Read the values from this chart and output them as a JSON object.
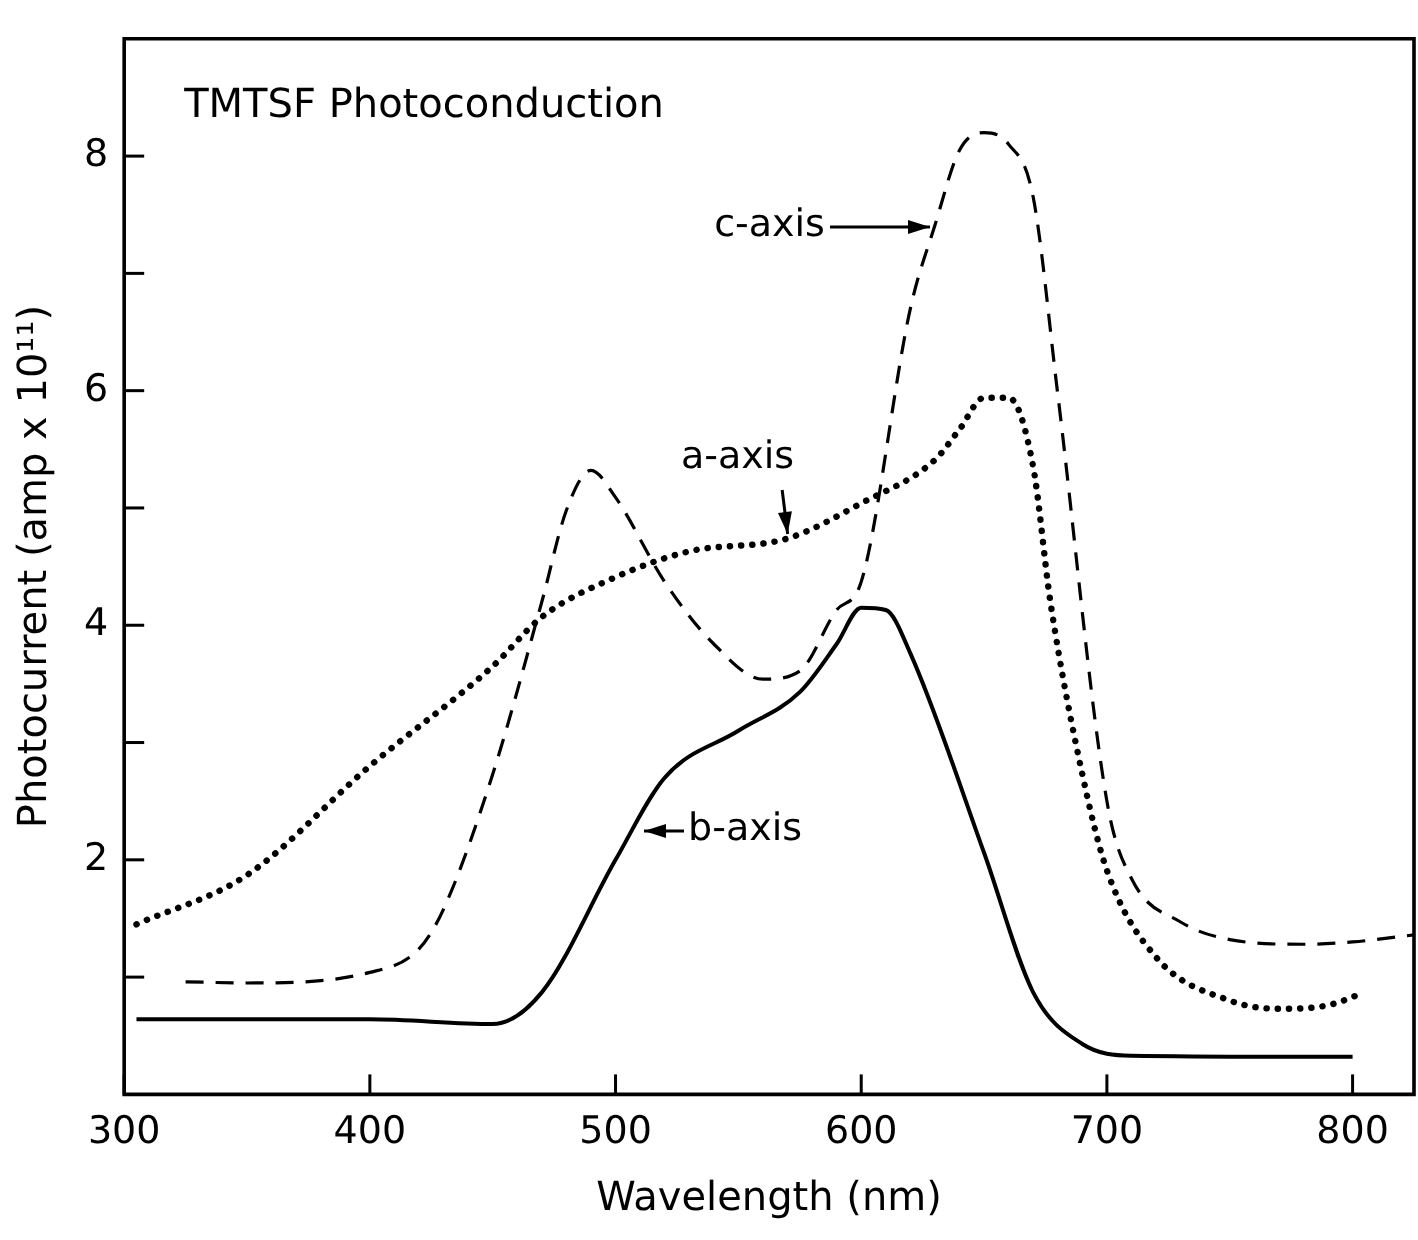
{
  "chart_data": {
    "type": "line",
    "title": "TMTSF Photoconduction",
    "xlabel": "Wavelength (nm)",
    "ylabel": "Photocurrent (amp x 10¹¹)",
    "xlim": [
      300,
      825
    ],
    "xticks": [
      300,
      400,
      500,
      600,
      700,
      800
    ],
    "ylim": [
      0,
      9
    ],
    "yticks": [
      {
        "value": 1,
        "label": null
      },
      2,
      {
        "value": 3,
        "label": null
      },
      4,
      {
        "value": 5,
        "label": null
      },
      6,
      {
        "value": 7,
        "label": null
      },
      8
    ],
    "grid": false,
    "legend": false,
    "marker": "none",
    "series": [
      {
        "color": "#000000",
        "line_style": "dashed",
        "x": [
          325,
          350,
          400,
          420,
          430,
          450,
          470,
          480,
          490,
          500,
          520,
          540,
          560,
          575,
          590,
          600,
          620,
          630,
          640,
          650,
          660,
          670,
          680,
          700,
          710,
          730,
          750,
          780,
          800,
          825
        ],
        "values": [
          0.96,
          0.95,
          1.04,
          1.24,
          1.58,
          2.73,
          4.2,
          4.98,
          5.32,
          5.09,
          4.37,
          3.84,
          3.54,
          3.61,
          4.13,
          4.37,
          6.7,
          7.41,
          8.05,
          8.2,
          8.1,
          7.65,
          5.97,
          2.5,
          1.84,
          1.47,
          1.32,
          1.28,
          1.3,
          1.36
        ]
      },
      {
        "color": "#000000",
        "line_style": "dotted",
        "x": [
          305,
          350,
          400,
          450,
          470,
          500,
          530,
          570,
          600,
          630,
          640,
          650,
          660,
          670,
          677,
          690,
          700,
          720,
          750,
          770,
          790,
          805
        ],
        "values": [
          1.45,
          1.87,
          2.8,
          3.65,
          4.07,
          4.41,
          4.63,
          4.74,
          5.04,
          5.41,
          5.67,
          5.94,
          5.94,
          5.35,
          4.2,
          2.73,
          1.91,
          1.17,
          0.8,
          0.73,
          0.76,
          0.87
        ]
      },
      {
        "color": "#000000",
        "line_style": "solid",
        "x": [
          305,
          400,
          450,
          470,
          500,
          520,
          550,
          575,
          590,
          600,
          610,
          620,
          650,
          670,
          690,
          710,
          800
        ],
        "values": [
          0.64,
          0.64,
          0.6,
          0.87,
          2.0,
          2.7,
          3.1,
          3.43,
          3.84,
          4.15,
          4.13,
          3.76,
          2.06,
          0.87,
          0.43,
          0.33,
          0.32
        ]
      }
    ],
    "annotations": [
      {
        "text": "c-axis",
        "x": 630,
        "y": 7.4
      },
      {
        "text": "a-axis",
        "x": 570,
        "y": 4.74
      },
      {
        "text": "b-axis",
        "x": 510,
        "y": 2.25
      }
    ]
  }
}
